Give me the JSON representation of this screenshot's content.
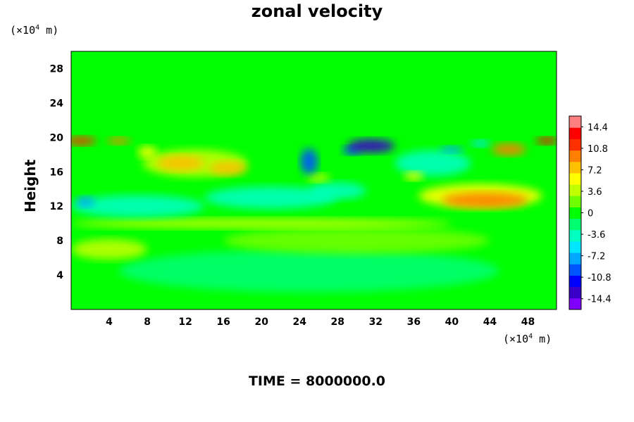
{
  "chart_data": {
    "type": "heatmap",
    "title": "zonal velocity",
    "ylabel": "Height",
    "x_unit": "(×10⁴ m)",
    "y_unit": "(×10⁴ m)",
    "xlim": [
      0,
      51
    ],
    "ylim": [
      0,
      30
    ],
    "x_ticks": [
      "4",
      "8",
      "12",
      "16",
      "20",
      "24",
      "28",
      "32",
      "36",
      "40",
      "44",
      "48"
    ],
    "y_ticks": [
      "4",
      "8",
      "12",
      "16",
      "20",
      "24",
      "28"
    ],
    "colorbar": {
      "range": [
        -16.2,
        16.2
      ],
      "labels": [
        "14.4",
        "10.8",
        "7.2",
        "3.6",
        "0",
        "-3.6",
        "-7.2",
        "-10.8",
        "-14.4"
      ]
    },
    "features": [
      {
        "x": 1,
        "y": 19.6,
        "rx": 1.6,
        "ry": 0.5,
        "value": 12
      },
      {
        "x": 5,
        "y": 19.6,
        "rx": 1.2,
        "ry": 0.4,
        "value": 9
      },
      {
        "x": 50,
        "y": 19.6,
        "rx": 1.2,
        "ry": 0.4,
        "value": 13
      },
      {
        "x": 46,
        "y": 18.6,
        "rx": 1.8,
        "ry": 0.7,
        "value": 10
      },
      {
        "x": 31.5,
        "y": 19.0,
        "rx": 2.5,
        "ry": 0.8,
        "value": -14
      },
      {
        "x": 29.5,
        "y": 18.5,
        "rx": 1.0,
        "ry": 0.5,
        "value": -10
      },
      {
        "x": 25,
        "y": 17.2,
        "rx": 0.9,
        "ry": 1.5,
        "value": -9
      },
      {
        "x": 40,
        "y": 18.6,
        "rx": 1.2,
        "ry": 0.4,
        "value": -8
      },
      {
        "x": 43,
        "y": 19.3,
        "rx": 1.0,
        "ry": 0.4,
        "value": -6
      },
      {
        "x": 38,
        "y": 17.0,
        "rx": 4.0,
        "ry": 1.5,
        "value": -4
      },
      {
        "x": 11.5,
        "y": 17.0,
        "rx": 2.5,
        "ry": 0.9,
        "value": 8
      },
      {
        "x": 16.5,
        "y": 16.4,
        "rx": 2.0,
        "ry": 0.8,
        "value": 8
      },
      {
        "x": 13,
        "y": 17.0,
        "rx": 5.5,
        "ry": 1.6,
        "value": 4
      },
      {
        "x": 8,
        "y": 18.3,
        "rx": 1.0,
        "ry": 0.7,
        "value": 5
      },
      {
        "x": 43.5,
        "y": 12.7,
        "rx": 4.5,
        "ry": 0.9,
        "value": 9
      },
      {
        "x": 43,
        "y": 13.2,
        "rx": 6.5,
        "ry": 1.4,
        "value": 5
      },
      {
        "x": 1.5,
        "y": 12.5,
        "rx": 1.0,
        "ry": 0.6,
        "value": -8
      },
      {
        "x": 7,
        "y": 12.0,
        "rx": 7.0,
        "ry": 1.3,
        "value": -4
      },
      {
        "x": 21,
        "y": 13.0,
        "rx": 7.0,
        "ry": 1.3,
        "value": -4
      },
      {
        "x": 36,
        "y": 15.5,
        "rx": 1.0,
        "ry": 0.5,
        "value": 5
      },
      {
        "x": 26,
        "y": 15.3,
        "rx": 1.2,
        "ry": 0.5,
        "value": 4
      },
      {
        "x": 28,
        "y": 13.8,
        "rx": 3.0,
        "ry": 1.0,
        "value": -3
      },
      {
        "x": 20,
        "y": 10.0,
        "rx": 20.0,
        "ry": 0.6,
        "value": 3
      },
      {
        "x": 4,
        "y": 7.0,
        "rx": 4.0,
        "ry": 1.2,
        "value": 3
      },
      {
        "x": 30,
        "y": 8.0,
        "rx": 14.0,
        "ry": 1.5,
        "value": 2
      },
      {
        "x": 25,
        "y": 4.5,
        "rx": 20.0,
        "ry": 2.5,
        "value": -1.5
      }
    ]
  },
  "labels": {
    "title": "zonal velocity",
    "y_unit_prefix": "(×10",
    "y_unit_exp": "4",
    "y_unit_suffix": " m)",
    "x_unit_prefix": "(×10",
    "x_unit_exp": "4",
    "x_unit_suffix": " m)",
    "ylabel": "Height",
    "time": "TIME = 8000000.0"
  },
  "colors": {
    "background": "#00ff00",
    "scale": [
      "#7f00ff",
      "#3a00c8",
      "#0000ff",
      "#0055ff",
      "#00a8ff",
      "#00e6ff",
      "#00ffc0",
      "#00ff70",
      "#00ff00",
      "#70ff00",
      "#c0ff00",
      "#ffff00",
      "#ffc000",
      "#ff8000",
      "#ff3000",
      "#ff0000",
      "#ff8080"
    ]
  }
}
